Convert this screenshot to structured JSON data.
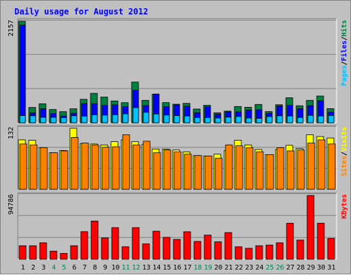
{
  "chart_data": {
    "title": "Daily usage for August 2012",
    "type": "bar",
    "days": [
      "1",
      "2",
      "3",
      "4",
      "5",
      "6",
      "7",
      "8",
      "9",
      "10",
      "11",
      "12",
      "13",
      "14",
      "15",
      "16",
      "17",
      "18",
      "19",
      "20",
      "21",
      "22",
      "23",
      "24",
      "25",
      "26",
      "27",
      "28",
      "29",
      "30",
      "31"
    ],
    "weekend_days": [
      "4",
      "5",
      "11",
      "12",
      "18",
      "19",
      "25",
      "26"
    ],
    "panels": [
      {
        "id": "hits",
        "max_label": "2157",
        "max": 2157,
        "axis_labels": [
          {
            "text": "Pages",
            "color": "#00c0ff"
          },
          {
            "text": "Files",
            "color": "#0000ff"
          },
          {
            "text": "Hits",
            "color": "#008040"
          }
        ],
        "series": [
          {
            "name": "Hits",
            "color": "#008040",
            "values": [
              2157,
              325,
              404,
              281,
              236,
              297,
              498,
              625,
              546,
              464,
              427,
              864,
              477,
              606,
              429,
              394,
              413,
              291,
              371,
              211,
              248,
              346,
              330,
              389,
              238,
              384,
              531,
              362,
              477,
              568,
              300
            ]
          },
          {
            "name": "Files",
            "color": "#0000ff",
            "values": [
              2076,
              210,
              298,
              197,
              143,
              203,
              406,
              405,
              371,
              380,
              343,
              691,
              365,
              610,
              344,
              379,
              351,
              214,
              341,
              180,
              231,
              232,
              269,
              279,
              202,
              356,
              371,
              300,
              361,
              468,
              227
            ]
          },
          {
            "name": "Pages",
            "color": "#00c0ff",
            "values": [
              153,
              148,
              117,
              117,
              109,
              148,
              142,
              170,
              162,
              172,
              190,
              322,
              221,
              187,
              163,
              153,
              144,
              111,
              111,
              101,
              120,
              132,
              100,
              94,
              131,
              148,
              144,
              114,
              157,
              145,
              156
            ]
          }
        ]
      },
      {
        "id": "visits",
        "max_label": "132",
        "max": 132,
        "axis_labels": [
          {
            "text": "Sites",
            "color": "#ff8000"
          },
          {
            "text": "Visits",
            "color": "#ffff00"
          }
        ],
        "series": [
          {
            "name": "Visits",
            "color": "#ffff00",
            "values": [
              107,
              106,
              90,
              79,
              84,
              132,
              99,
              98,
              96,
              103,
              107,
              103,
              97,
              87,
              87,
              85,
              81,
              73,
              72,
              76,
              84,
              106,
              96,
              86,
              75,
              86,
              95,
              88,
              118,
              114,
              111
            ]
          },
          {
            "name": "Sites",
            "color": "#ff8000",
            "values": [
              98,
              96,
              90,
              79,
              83,
              112,
              100,
              96,
              91,
              92,
              118,
              96,
              104,
              79,
              85,
              81,
              76,
              73,
              72,
              67,
              96,
              94,
              90,
              81,
              75,
              90,
              83,
              85,
              100,
              107,
              98
            ]
          }
        ]
      },
      {
        "id": "kbytes",
        "max_label": "94786",
        "max": 94786,
        "axis_labels": [
          {
            "text": "KBytes",
            "color": "#ff0000"
          }
        ],
        "series": [
          {
            "name": "KBytes",
            "color": "#ff0000",
            "values": [
              20100,
              20100,
              24500,
              12000,
              8700,
              20100,
              41000,
              56800,
              31700,
              47000,
              18500,
              47000,
              22800,
              41700,
              32600,
              29500,
              40900,
              26500,
              35900,
              25900,
              39600,
              18500,
              16300,
              20100,
              21100,
              24500,
              53500,
              28500,
              94786,
              53500,
              30900
            ]
          }
        ]
      }
    ]
  }
}
